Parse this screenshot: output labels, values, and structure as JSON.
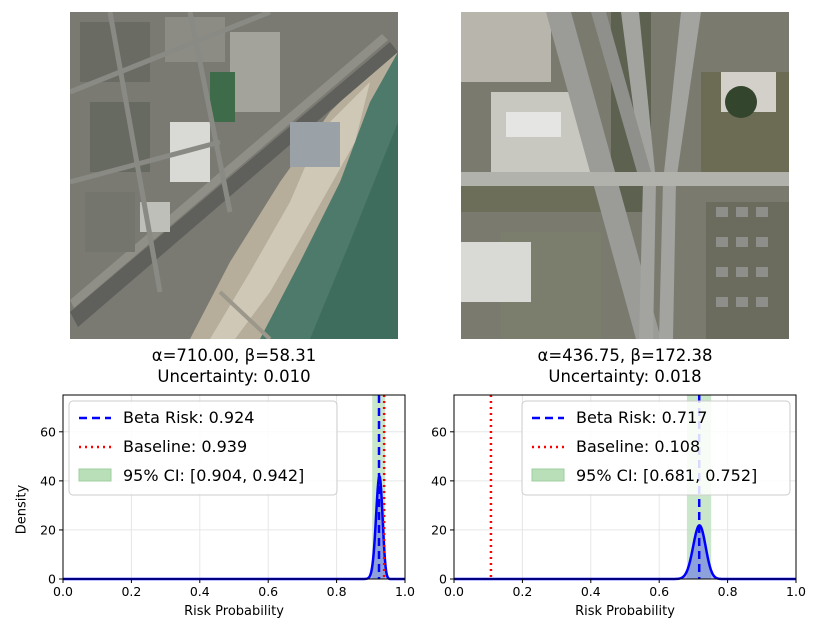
{
  "colors": {
    "beta_line": "#0000ff",
    "baseline_line": "#ff0000",
    "ci_fill": "#b9dfb9",
    "grid": "#e6e6e6"
  },
  "panels": [
    {
      "image_label": "aerial coastal urban imagery",
      "title_line1": "α=710.00, β=58.31",
      "title_line2": "Uncertainty: 0.010"
    },
    {
      "image_label": "aerial highway interchange imagery",
      "title_line1": "α=436.75, β=172.38",
      "title_line2": "Uncertainty: 0.018"
    }
  ],
  "chart_data": [
    {
      "type": "line",
      "xlabel": "Risk Probability",
      "ylabel": "Density",
      "xlim": [
        0.0,
        1.0
      ],
      "ylim": [
        0,
        75
      ],
      "xticks": [
        "0.0",
        "0.2",
        "0.4",
        "0.6",
        "0.8",
        "1.0"
      ],
      "yticks": [
        "0",
        "20",
        "40",
        "60"
      ],
      "grid": true,
      "legend_position": "top-left",
      "beta": {
        "alpha": 710.0,
        "beta": 58.31,
        "mean": 0.924,
        "peak_density": 42
      },
      "baseline": 0.939,
      "ci": [
        0.904,
        0.942
      ],
      "legend": [
        "Beta Risk: 0.924",
        "Baseline: 0.939",
        "95% CI: [0.904, 0.942]"
      ]
    },
    {
      "type": "line",
      "xlabel": "Risk Probability",
      "ylabel": "",
      "xlim": [
        0.0,
        1.0
      ],
      "ylim": [
        0,
        75
      ],
      "xticks": [
        "0.0",
        "0.2",
        "0.4",
        "0.6",
        "0.8",
        "1.0"
      ],
      "yticks": [
        "0",
        "20",
        "40",
        "60"
      ],
      "grid": true,
      "legend_position": "top-right",
      "beta": {
        "alpha": 436.75,
        "beta": 172.38,
        "mean": 0.717,
        "peak_density": 23
      },
      "baseline": 0.108,
      "ci": [
        0.681,
        0.752
      ],
      "legend": [
        "Beta Risk: 0.717",
        "Baseline: 0.108",
        "95% CI: [0.681, 0.752]"
      ]
    }
  ]
}
